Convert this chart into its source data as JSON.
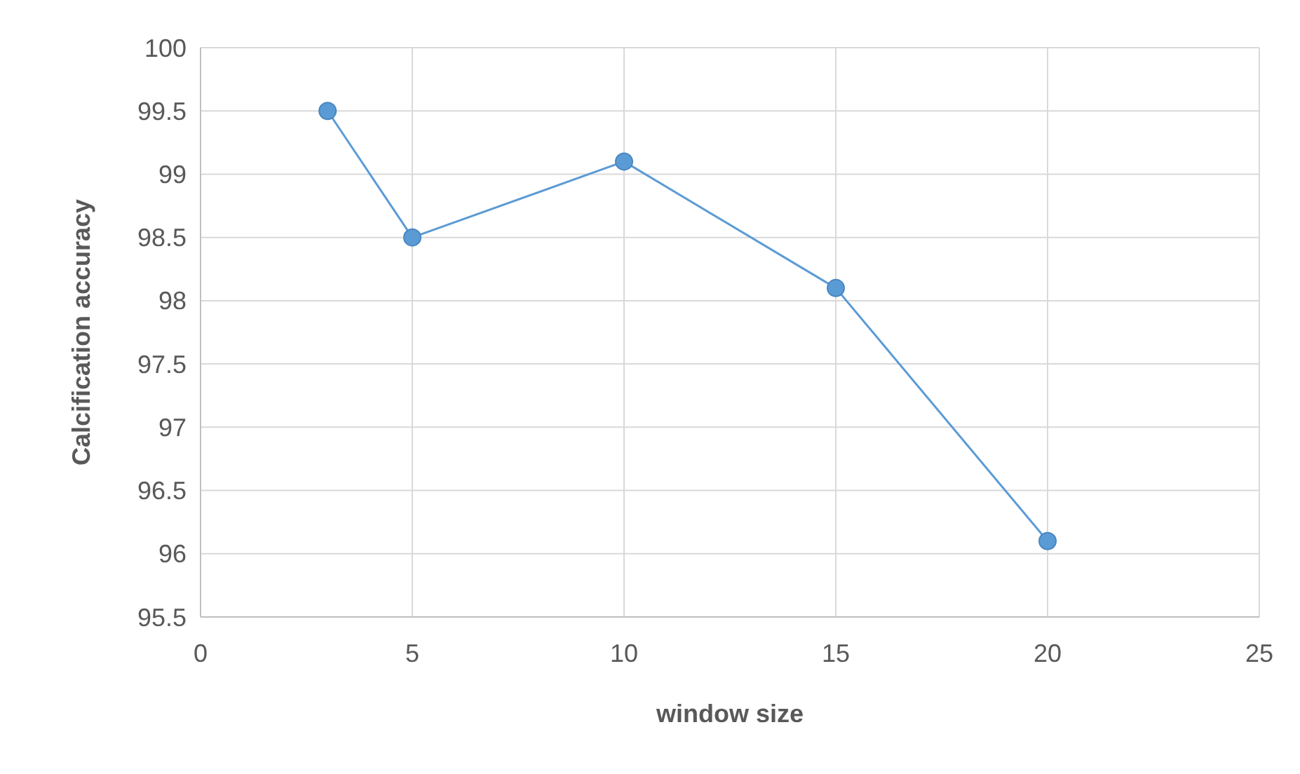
{
  "chart_data": {
    "type": "line",
    "xlabel": "window size",
    "ylabel": "Calcification accuracy",
    "x": [
      3,
      5,
      10,
      15,
      20
    ],
    "series": [
      {
        "color": "#5b9bd5",
        "values": [
          99.5,
          98.5,
          99.1,
          98.1,
          96.1
        ]
      }
    ],
    "xlim": [
      0,
      25
    ],
    "xticks": [
      0,
      5,
      10,
      15,
      20,
      25
    ],
    "ylim": [
      95.5,
      100
    ],
    "yticks": [
      95.5,
      96,
      96.5,
      97,
      97.5,
      98,
      98.5,
      99,
      99.5,
      100
    ],
    "grid": true,
    "marker": "circle",
    "line_style": "solid"
  }
}
